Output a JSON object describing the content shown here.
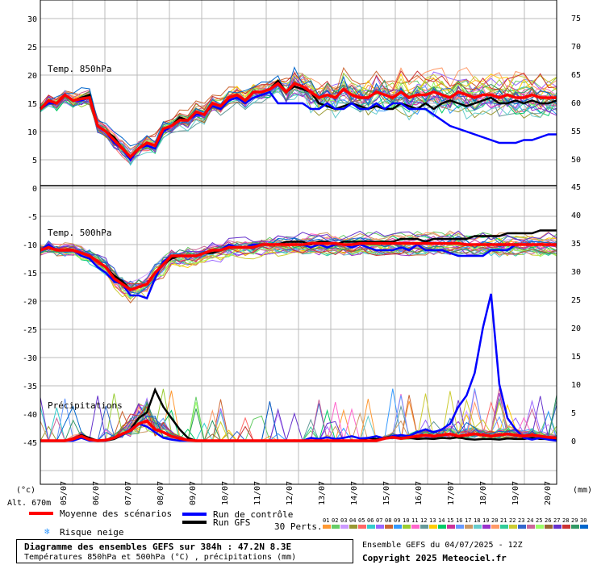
{
  "chart_data": {
    "type": "line",
    "x_dates": [
      "05/07",
      "06/07",
      "07/07",
      "08/07",
      "09/07",
      "10/07",
      "11/07",
      "12/07",
      "13/07",
      "14/07",
      "15/07",
      "16/07",
      "17/07",
      "18/07",
      "19/07",
      "20/07"
    ],
    "panel_labels": {
      "t850": "Temp. 850hPa",
      "t500": "Temp. 500hPa",
      "precip": "Précipitations"
    },
    "left_axis": {
      "unit": "(°c)",
      "ticks": [
        "30",
        "25",
        "20",
        "15",
        "10",
        "5",
        "0",
        "-5",
        "-10",
        "-15",
        "-20",
        "-25",
        "-30",
        "-35",
        "-40",
        "-45"
      ]
    },
    "right_axis": {
      "unit": "(mm)",
      "ticks_top": [
        "75",
        "70",
        "65",
        "60",
        "55",
        "50"
      ],
      "ticks_bottom": [
        "45",
        "40",
        "35",
        "30",
        "25",
        "20",
        "15",
        "10",
        "5",
        "0"
      ]
    },
    "altitude": "Alt. 670m",
    "series": [
      {
        "name": "Moyenne des scénarios",
        "color": "#ff0000",
        "t850": [
          14,
          15.5,
          15,
          16.5,
          15.5,
          15.8,
          16,
          11,
          10,
          8.5,
          7,
          5.5,
          7,
          8,
          7.5,
          10.5,
          11,
          12,
          12,
          13.5,
          13,
          15,
          14.5,
          16,
          16.5,
          15.5,
          17,
          17,
          17.5,
          18.5,
          17,
          18.5,
          18,
          17,
          16,
          16.5,
          16,
          17.5,
          16.5,
          16,
          16,
          17,
          16.5,
          16,
          17,
          16,
          16.5,
          16.5,
          17,
          16.5,
          16,
          17,
          16.5,
          16,
          16.5,
          16.5,
          16,
          16.5,
          16,
          16,
          16.5,
          16,
          16,
          16
        ],
        "t500": [
          -11,
          -10.5,
          -11,
          -11,
          -11,
          -11.5,
          -12,
          -13,
          -14,
          -16,
          -17,
          -18,
          -17.5,
          -17,
          -15,
          -13.5,
          -12,
          -12,
          -12,
          -12,
          -11.5,
          -11,
          -11,
          -10.5,
          -10.5,
          -10.5,
          -10.5,
          -10,
          -10,
          -10,
          -10,
          -10,
          -10,
          -9.8,
          -9.8,
          -9.8,
          -9.8,
          -10,
          -10,
          -9.8,
          -9.8,
          -9.8,
          -9.8,
          -9.8,
          -9.8,
          -9.8,
          -9.8,
          -9.8,
          -9.8,
          -9.8,
          -9.8,
          -9.8,
          -10,
          -10,
          -10,
          -10,
          -10,
          -10,
          -10,
          -10,
          -10,
          -10,
          -10,
          -10
        ],
        "precip": [
          0,
          0,
          0,
          0,
          0.3,
          0.8,
          0.2,
          0,
          0.1,
          0.5,
          1.2,
          1.8,
          3,
          3.5,
          2,
          1.5,
          0.8,
          0.4,
          0.1,
          0,
          0,
          0,
          0,
          0,
          0,
          0,
          0,
          0,
          0,
          0,
          0,
          0,
          0,
          0,
          0,
          0,
          0,
          0,
          0,
          0,
          0,
          0,
          0.4,
          0.6,
          0.4,
          0.6,
          0.8,
          1,
          0.8,
          1,
          1.2,
          0.8,
          1,
          1.2,
          1,
          0.8,
          1,
          1.2,
          1,
          0.8,
          1,
          0.8,
          0.6,
          0.5
        ]
      },
      {
        "name": "Run de contrôle",
        "color": "#0000ff",
        "t850": [
          14,
          15,
          15,
          16.5,
          15.5,
          15.5,
          16,
          11,
          10,
          8,
          7,
          5,
          7,
          7.5,
          7,
          10,
          11,
          12,
          12,
          13,
          13,
          14.5,
          14,
          15.5,
          16,
          15,
          16,
          16.5,
          17,
          15,
          15,
          15,
          15,
          14,
          14,
          15,
          14,
          14,
          15,
          14,
          14,
          15,
          14,
          15,
          15,
          14,
          14,
          14,
          13,
          12,
          11,
          10.5,
          10,
          9.5,
          9,
          8.5,
          8,
          8,
          8,
          8.5,
          8.5,
          9,
          9.5,
          9.5
        ],
        "t500": [
          -11,
          -10,
          -11,
          -11,
          -11,
          -12,
          -12.5,
          -14,
          -15,
          -16.5,
          -17,
          -19,
          -19,
          -19.5,
          -16,
          -13,
          -12,
          -12,
          -12,
          -12,
          -11.5,
          -11,
          -11,
          -10,
          -10.5,
          -10.5,
          -10,
          -10,
          -10,
          -10,
          -10,
          -10,
          -10,
          -10.5,
          -10,
          -10.5,
          -10,
          -10,
          -10.5,
          -10,
          -10.5,
          -11,
          -11,
          -11,
          -10.5,
          -11,
          -10,
          -11,
          -11,
          -11,
          -11.5,
          -12,
          -12,
          -12,
          -12,
          -11,
          -11,
          -11,
          -10,
          -10,
          -10,
          -10,
          -10,
          -10
        ],
        "precip": [
          0,
          0,
          0,
          0,
          0,
          0.5,
          0,
          0,
          0,
          0.5,
          1,
          2,
          3,
          2.5,
          1.5,
          0.5,
          0.2,
          0,
          0,
          0,
          0,
          0,
          0,
          0,
          0,
          0,
          0,
          0,
          0,
          0,
          0,
          0,
          0,
          0.5,
          0.3,
          0.6,
          0.3,
          0.5,
          0.8,
          0.4,
          0.5,
          0.8,
          0.4,
          0.8,
          1,
          0.8,
          1.5,
          2,
          1.5,
          2,
          3,
          6,
          8,
          12,
          20,
          26,
          10,
          4,
          2,
          0.5,
          0.2,
          0.5,
          0.2,
          0
        ]
      },
      {
        "name": "Run GFS",
        "color": "#000000",
        "t850": [
          14,
          15,
          15,
          16.5,
          15.5,
          16,
          16.5,
          11,
          10,
          9,
          7,
          5.5,
          7,
          8,
          7.5,
          10,
          11,
          12.5,
          12,
          13.5,
          13,
          15,
          14.5,
          16,
          16.5,
          15.5,
          17,
          17,
          17.5,
          19,
          17,
          18,
          17.5,
          17,
          15,
          14.5,
          14,
          14.5,
          15,
          14.5,
          14,
          14.5,
          14,
          14,
          15,
          14.5,
          14,
          15,
          14,
          15,
          15.5,
          15,
          14.5,
          15,
          15.5,
          16,
          15,
          15,
          15.5,
          15,
          15.5,
          15,
          15,
          15.5
        ],
        "t500": [
          -11,
          -10.5,
          -11,
          -11,
          -11,
          -11.5,
          -12,
          -13,
          -14,
          -15.5,
          -16.5,
          -18,
          -17.5,
          -17,
          -15,
          -13.5,
          -12.5,
          -12,
          -12,
          -12,
          -11.5,
          -11.5,
          -11,
          -10.5,
          -10.5,
          -10.5,
          -10,
          -10,
          -10,
          -10,
          -9.5,
          -9.5,
          -9.5,
          -10,
          -9.5,
          -9.5,
          -10,
          -9.5,
          -9.5,
          -9.5,
          -9.5,
          -9.5,
          -9.5,
          -9.5,
          -9,
          -9,
          -9,
          -9.5,
          -9,
          -9,
          -9,
          -9,
          -9,
          -8.5,
          -8.5,
          -8.5,
          -8.5,
          -8,
          -8,
          -8,
          -8,
          -7.5,
          -7.5,
          -7.5
        ],
        "precip": [
          0,
          0,
          0,
          0,
          0.2,
          1,
          0.5,
          0,
          0,
          0.3,
          1,
          2,
          4,
          5,
          9,
          6,
          4,
          2,
          0.5,
          0,
          0,
          0,
          0,
          0,
          0,
          0,
          0,
          0,
          0,
          0,
          0,
          0,
          0,
          0,
          0,
          0,
          0,
          0,
          0,
          0,
          0.5,
          0.3,
          0.5,
          0.8,
          0.5,
          0.5,
          0.3,
          0.4,
          0.3,
          0.5,
          0.4,
          0.6,
          0.3,
          0.2,
          0.3,
          0.3,
          0.2,
          0.4,
          0.3,
          0.3,
          0.5,
          0.3,
          0.3,
          0.2
        ]
      }
    ],
    "members_label": "30 Perts.",
    "member_numbers": [
      "01",
      "02",
      "03",
      "04",
      "05",
      "06",
      "07",
      "08",
      "09",
      "10",
      "11",
      "12",
      "13",
      "14",
      "15",
      "16",
      "17",
      "18",
      "19",
      "20",
      "21",
      "22",
      "23",
      "24",
      "25",
      "26",
      "27",
      "28",
      "29",
      "30"
    ],
    "member_colors": [
      "#ff9933",
      "#66cc66",
      "#cc99ff",
      "#999933",
      "#ff6666",
      "#33cccc",
      "#9966ff",
      "#cc6633",
      "#3399ff",
      "#99cc33",
      "#ff66cc",
      "#669999",
      "#ffcc00",
      "#00cc66",
      "#cc3399",
      "#6699ff",
      "#cc9966",
      "#66cccc",
      "#9933cc",
      "#ff9966",
      "#33cc99",
      "#cccc33",
      "#3366cc",
      "#cc6699",
      "#99ff66",
      "#996633",
      "#6633cc",
      "#cc3333",
      "#339966",
      "#0066cc"
    ],
    "legend_snow": "Risque neige",
    "footer_title": "Diagramme des ensembles GEFS sur 384h : 47.2N 8.3E",
    "footer_subtitle": "Températures 850hPa et 500hPa (°C) , précipitations (mm)",
    "run_info": "Ensemble GEFS du 04/07/2025 - 12Z",
    "copyright": "Copyright 2025 Meteociel.fr"
  }
}
